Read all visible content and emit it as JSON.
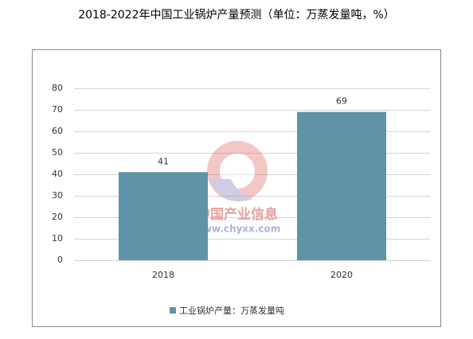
{
  "chart_data": {
    "type": "bar",
    "title": "2018-2022年中国工业锅炉产量预测（单位：万蒸发量吨，%）",
    "categories": [
      "2018",
      "2020"
    ],
    "series": [
      {
        "name": "工业锅炉产量：万蒸发量吨",
        "color": "#5f93a8",
        "values": [
          41,
          69
        ]
      }
    ],
    "ylim": [
      0,
      80
    ],
    "yticks": [
      0,
      10,
      20,
      30,
      40,
      50,
      60,
      70,
      80
    ],
    "grid": true,
    "legend": "bottom",
    "watermark": [
      "中国产业信息",
      "www.chyxx.com"
    ]
  }
}
